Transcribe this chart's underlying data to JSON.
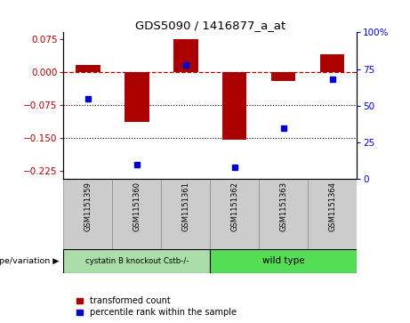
{
  "title": "GDS5090 / 1416877_a_at",
  "samples": [
    "GSM1151359",
    "GSM1151360",
    "GSM1151361",
    "GSM1151362",
    "GSM1151363",
    "GSM1151364"
  ],
  "red_values": [
    0.015,
    -0.115,
    0.075,
    -0.155,
    -0.02,
    0.04
  ],
  "blue_values": [
    55,
    10,
    78,
    8,
    35,
    68
  ],
  "ylim_left": [
    -0.245,
    0.09
  ],
  "ylim_right": [
    0,
    100
  ],
  "yticks_left": [
    0.075,
    0,
    -0.075,
    -0.15,
    -0.225
  ],
  "yticks_right": [
    100,
    75,
    50,
    25,
    0
  ],
  "hlines": [
    -0.075,
    -0.15
  ],
  "zero_line": 0,
  "bar_color": "#aa0000",
  "dot_color": "#0000cc",
  "group1_label": "cystatin B knockout Cstb-/-",
  "group2_label": "wild type",
  "group1_indices": [
    0,
    1,
    2
  ],
  "group2_indices": [
    3,
    4,
    5
  ],
  "group1_color": "#aaddaa",
  "group2_color": "#55dd55",
  "xlabel_genotype": "genotype/variation",
  "legend_red": "transformed count",
  "legend_blue": "percentile rank within the sample",
  "bar_width": 0.5
}
